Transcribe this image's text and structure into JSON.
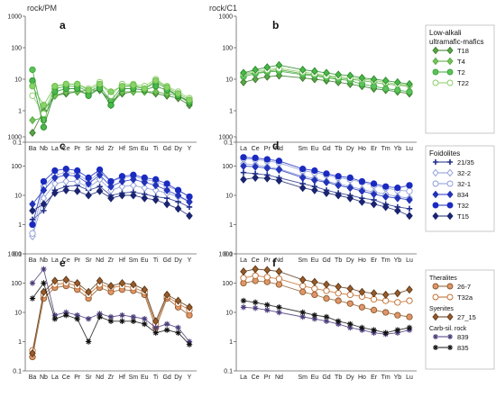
{
  "chart_data": {
    "type": "line",
    "y_scale": "log",
    "y_axis_label_left": "rock/PM",
    "y_axis_label_right": "rock/C1",
    "ylim": [
      0.1,
      1000
    ],
    "y_ticks": [
      "0.1",
      "1",
      "10",
      "100",
      "1000"
    ],
    "grid": false,
    "spider_elements": [
      "Ba",
      "Nb",
      "La",
      "Ce",
      "Pr",
      "Sr",
      "Nd",
      "Zr",
      "Hf",
      "Sm",
      "Eu",
      "Ti",
      "Gd",
      "Dy",
      "Y"
    ],
    "ree_elements": [
      "La",
      "Ce",
      "Pr",
      "Nd",
      "",
      "Sm",
      "Eu",
      "Gd",
      "Tb",
      "Dy",
      "Ho",
      "Er",
      "Tm",
      "Yb",
      "Lu"
    ],
    "panels": [
      {
        "label": "a",
        "kind": "spider",
        "series": [
          {
            "name": "T18",
            "marker": "diamond",
            "color": "#3a7a2a",
            "fill": "#5aa64a",
            "values": [
              0.2,
              1.0,
              3.0,
              3.5,
              4.0,
              4.5,
              4.5,
              2.0,
              3.5,
              4.0,
              4.0,
              3.5,
              3.0,
              2.5,
              1.5
            ]
          },
          {
            "name": "T4",
            "marker": "diamond",
            "color": "#55a83d",
            "fill": "#76c35c",
            "values": [
              0.5,
              0.6,
              3.0,
              4.0,
              4.0,
              3.5,
              5.0,
              1.5,
              4.0,
              4.0,
              4.0,
              4.0,
              3.5,
              3.0,
              2.0
            ]
          },
          {
            "name": "T2",
            "marker": "circle",
            "color": "#3aa53a",
            "fill": "#5cc25a",
            "values": [
              20.0,
              0.5,
              5.0,
              6.0,
              6.0,
              4.0,
              6.0,
              2.0,
              6.0,
              6.0,
              5.0,
              8.0,
              5.0,
              3.0,
              2.0
            ]
          },
          {
            "name": "T22",
            "marker": "circle-open",
            "color": "#88cc66",
            "fill": "none",
            "values": [
              3.0,
              0.8,
              6.0,
              7.0,
              7.0,
              5.0,
              8.0,
              3.0,
              7.0,
              7.0,
              6.0,
              10.0,
              6.0,
              4.0,
              2.5
            ]
          },
          {
            "marker": "circle",
            "color": "#2a8a2a",
            "fill": "#4ab84a",
            "values": [
              9.0,
              0.3,
              4.0,
              5.0,
              5.0,
              3.0,
              5.0,
              1.5,
              5.0,
              5.0,
              4.5,
              6.0,
              4.5,
              3.0,
              1.8
            ]
          },
          {
            "marker": "circle",
            "color": "#66bb44",
            "fill": "#8ad36a",
            "values": [
              6.0,
              1.5,
              6.0,
              7.0,
              7.0,
              4.5,
              7.0,
              4.0,
              6.0,
              6.5,
              5.0,
              9.0,
              5.5,
              3.5,
              2.2
            ]
          }
        ]
      },
      {
        "label": "b",
        "kind": "ree",
        "series": [
          {
            "name": "T18",
            "marker": "diamond",
            "color": "#3a7a2a",
            "fill": "#5aa64a",
            "values": [
              8,
              10,
              12,
              13,
              null,
              11,
              10,
              9,
              8,
              7,
              6,
              5,
              4.5,
              4,
              3.5
            ]
          },
          {
            "name": "T4",
            "marker": "diamond",
            "color": "#55a83d",
            "fill": "#76c35c",
            "values": [
              14,
              16,
              18,
              20,
              null,
              15,
              14,
              12,
              11,
              10,
              9,
              8,
              7,
              6.5,
              6
            ]
          },
          {
            "name": "T2",
            "marker": "circle",
            "color": "#3aa53a",
            "fill": "#5cc25a",
            "values": [
              12,
              15,
              17,
              18,
              null,
              14,
              13,
              11,
              10,
              9,
              7,
              6,
              5,
              4.5,
              4
            ]
          },
          {
            "name": "T22",
            "marker": "circle-open",
            "color": "#88cc66",
            "fill": "none",
            "values": [
              15,
              18,
              20,
              22,
              null,
              17,
              15,
              13,
              12,
              11,
              10,
              9,
              8,
              7,
              6.5
            ]
          },
          {
            "marker": "diamond",
            "color": "#2a8a2a",
            "fill": "#4ab84a",
            "values": [
              16,
              20,
              24,
              28,
              null,
              20,
              18,
              16,
              14,
              13,
              11,
              10,
              9,
              8,
              7
            ]
          }
        ]
      },
      {
        "label": "c",
        "kind": "spider",
        "series": [
          {
            "name": "21/35",
            "marker": "cross",
            "color": "#1f2f8a",
            "fill": "#1f2f8a",
            "values": [
              1.5,
              3.0,
              15,
              20,
              22,
              15,
              20,
              10,
              12,
              13,
              11,
              9,
              8,
              6,
              4
            ]
          },
          {
            "name": "32-2",
            "marker": "diamond-open",
            "color": "#8a9ad6",
            "fill": "none",
            "values": [
              0.4,
              8,
              25,
              30,
              30,
              18,
              35,
              15,
              20,
              22,
              18,
              15,
              12,
              9,
              6
            ]
          },
          {
            "name": "32-1",
            "marker": "circle-open",
            "color": "#8a9ad6",
            "fill": "none",
            "values": [
              0.5,
              20,
              50,
              60,
              55,
              30,
              60,
              30,
              40,
              45,
              35,
              30,
              20,
              15,
              9
            ]
          },
          {
            "name": "834",
            "marker": "diamond",
            "color": "#2233b8",
            "fill": "#2233b8",
            "values": [
              5,
              15,
              40,
              50,
              45,
              25,
              50,
              20,
              30,
              35,
              28,
              22,
              15,
              10,
              6
            ]
          },
          {
            "name": "T32",
            "marker": "circle",
            "color": "#1a2ac0",
            "fill": "#1a2ac0",
            "values": [
              1,
              30,
              70,
              80,
              70,
              40,
              75,
              30,
              45,
              50,
              40,
              35,
              25,
              15,
              9
            ]
          },
          {
            "name": "T15",
            "marker": "diamond",
            "color": "#1a2470",
            "fill": "#1a2470",
            "values": [
              3,
              5,
              12,
              15,
              14,
              10,
              14,
              8,
              10,
              10,
              8,
              7,
              5,
              3.5,
              2
            ]
          }
        ]
      },
      {
        "label": "d",
        "kind": "ree",
        "series": [
          {
            "name": "21/35",
            "marker": "cross",
            "color": "#1f2f8a",
            "fill": "#1f2f8a",
            "values": [
              60,
              55,
              50,
              40,
              null,
              25,
              20,
              15,
              12,
              10,
              8,
              7,
              5,
              4,
              3.5
            ]
          },
          {
            "name": "32-2",
            "marker": "diamond-open",
            "color": "#8a9ad6",
            "fill": "none",
            "values": [
              120,
              110,
              95,
              80,
              null,
              45,
              38,
              30,
              25,
              20,
              16,
              13,
              11,
              9,
              8
            ]
          },
          {
            "name": "32-1",
            "marker": "circle-open",
            "color": "#8a9ad6",
            "fill": "none",
            "values": [
              180,
              170,
              150,
              130,
              null,
              70,
              60,
              50,
              40,
              35,
              28,
              22,
              18,
              15,
              14
            ]
          },
          {
            "name": "834",
            "marker": "diamond",
            "color": "#2233b8",
            "fill": "#2233b8",
            "values": [
              100,
              95,
              85,
              75,
              null,
              40,
              33,
              28,
              22,
              18,
              14,
              11,
              9,
              8,
              7
            ]
          },
          {
            "name": "T32",
            "marker": "circle",
            "color": "#1a2ac0",
            "fill": "#1a2ac0",
            "values": [
              200,
              190,
              170,
              150,
              null,
              80,
              70,
              55,
              45,
              40,
              30,
              25,
              20,
              18,
              22
            ]
          },
          {
            "name": "T15",
            "marker": "diamond",
            "color": "#1a2470",
            "fill": "#1a2470",
            "values": [
              35,
              40,
              38,
              32,
              null,
              18,
              15,
              12,
              10,
              8,
              6,
              5,
              4,
              3,
              2
            ]
          }
        ]
      },
      {
        "label": "e",
        "kind": "spider",
        "series": [
          {
            "name": "26-7",
            "marker": "circle",
            "color": "#8a5a2a",
            "fill": "#e0956a",
            "values": [
              0.3,
              30,
              70,
              80,
              60,
              30,
              70,
              50,
              60,
              55,
              40,
              3,
              30,
              15,
              8
            ]
          },
          {
            "name": "T32a",
            "marker": "circle-open",
            "color": "#c06a2a",
            "fill": "none",
            "values": [
              0.5,
              40,
              90,
              100,
              80,
              40,
              90,
              70,
              80,
              70,
              50,
              4,
              35,
              20,
              12
            ]
          },
          {
            "name": "27_15",
            "marker": "diamond",
            "color": "#5a3a1a",
            "fill": "#9a5a2a",
            "values": [
              0.4,
              50,
              120,
              130,
              100,
              50,
              120,
              80,
              100,
              90,
              60,
              5,
              40,
              25,
              15
            ]
          },
          {
            "name": "839",
            "marker": "star",
            "color": "#4a3a7a",
            "fill": "#4a3a7a",
            "values": [
              100,
              300,
              8,
              10,
              8,
              6,
              9,
              7,
              8,
              7,
              6,
              3,
              4,
              3,
              1
            ]
          },
          {
            "name": "835",
            "marker": "star",
            "color": "#111111",
            "fill": "#111111",
            "values": [
              30,
              100,
              6,
              8,
              6,
              1,
              7,
              5,
              5,
              5,
              4,
              2,
              2.5,
              2,
              0.8
            ]
          }
        ]
      },
      {
        "label": "f",
        "kind": "ree",
        "series": [
          {
            "name": "26-7",
            "marker": "circle",
            "color": "#8a5a2a",
            "fill": "#e0956a",
            "values": [
              100,
              120,
              110,
              90,
              null,
              50,
              40,
              30,
              25,
              20,
              15,
              12,
              10,
              8,
              7
            ]
          },
          {
            "name": "T32a",
            "marker": "circle-open",
            "color": "#c06a2a",
            "fill": "none",
            "values": [
              150,
              180,
              160,
              140,
              null,
              80,
              65,
              55,
              45,
              40,
              35,
              28,
              25,
              22,
              25
            ]
          },
          {
            "name": "27_15",
            "marker": "diamond",
            "color": "#5a3a1a",
            "fill": "#9a5a2a",
            "values": [
              250,
              300,
              280,
              250,
              null,
              130,
              110,
              90,
              75,
              65,
              50,
              45,
              40,
              45,
              60
            ]
          },
          {
            "name": "839",
            "marker": "star",
            "color": "#4a3a7a",
            "fill": "#4a3a7a",
            "values": [
              15,
              14,
              12,
              10,
              null,
              7,
              6,
              5,
              4,
              3,
              2.5,
              2,
              1.8,
              2,
              2.5
            ]
          },
          {
            "name": "835",
            "marker": "star",
            "color": "#111111",
            "fill": "#111111",
            "values": [
              25,
              22,
              18,
              15,
              null,
              10,
              8,
              7,
              5,
              4,
              3,
              2.5,
              2,
              2.5,
              3
            ]
          }
        ]
      }
    ],
    "legends": [
      {
        "title_lines": [
          "Low-alkali",
          "ultramafic-mafics"
        ],
        "groups": [
          {
            "heading": "",
            "entries": [
              0,
              1,
              2,
              3
            ]
          }
        ],
        "panel": 0
      },
      {
        "title_lines": [
          "Foidolites"
        ],
        "groups": [
          {
            "heading": "",
            "entries": [
              0,
              1,
              2,
              3,
              4,
              5
            ]
          }
        ],
        "panel": 2
      },
      {
        "title_lines": [],
        "groups": [
          {
            "heading": "Theralites",
            "entries": [
              0,
              1
            ]
          },
          {
            "heading": "Syenites",
            "entries": [
              2
            ]
          },
          {
            "heading": "Carb-sil. rock",
            "entries": [
              3,
              4
            ]
          }
        ],
        "panel": 4
      }
    ]
  }
}
